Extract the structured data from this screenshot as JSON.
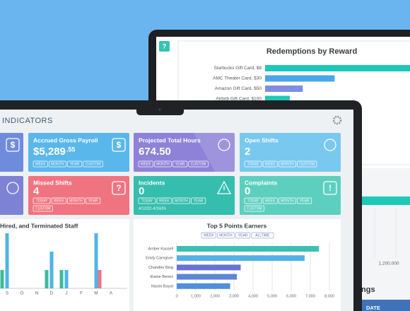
{
  "back_screen": {
    "help_icon": "?",
    "chart_data": {
      "type": "bar",
      "orientation": "horizontal",
      "title": "Redemptions by Reward",
      "categories": [
        "Starbucks Gift Card, $8",
        "AMC Theater Card, $30",
        "Amazon Gift Card, $50",
        "Airbnb Gift Card, $100"
      ],
      "values": [
        100,
        48,
        26,
        17
      ],
      "colors": [
        "#1ec8b8",
        "#4aa6e8",
        "#7f8ee0",
        "#1ec8b8"
      ]
    }
  },
  "front_screen": {
    "header": "INDICATORS",
    "cards": [
      {
        "color": "#6f8bdc",
        "icon": "$"
      },
      {
        "title": "Accrued Gross Payroll",
        "value": "$5,289",
        "value_suffix": ".55",
        "icon": "$",
        "color": "#5ab7ec",
        "filters": [
          "WEEK",
          "MONTH",
          "YEAR",
          "CUSTOM"
        ]
      },
      {
        "title": "Projected Total Hours",
        "value": "674.50",
        "color": "#8e82d8",
        "filters": [
          "WEEK",
          "MONTH",
          "YEAR",
          "CUSTOM"
        ]
      },
      {
        "title": "Open Shifts",
        "value": "2",
        "color": "#78c8f0",
        "filters": [
          "TODAY",
          "WEEK",
          "MONTH",
          "CUSTOM"
        ]
      },
      {
        "color": "#7d82d4"
      },
      {
        "title": "Missed Shifts",
        "value": "4",
        "icon": "?",
        "color": "#f07480",
        "filters": [
          "TODAY",
          "WEEK",
          "MONTH",
          "YEAR",
          "CUSTOM"
        ]
      },
      {
        "title": "Incidents",
        "value": "0",
        "color": "#35bead",
        "filters": [
          "TODAY",
          "WEEK",
          "MONTH",
          "YEAR"
        ],
        "date_range": "4/12/22-4/16/24"
      },
      {
        "title": "Complaints",
        "value": "0",
        "icon": "!",
        "color": "#5dcfbf",
        "filters": [
          "TODAY",
          "WEEK",
          "MONTH",
          "YEAR",
          "CUSTOM"
        ]
      }
    ],
    "staff_chart": {
      "chart_data": {
        "type": "bar",
        "title": "Hired, and Terminated Staff",
        "categories": [
          "S",
          "O",
          "N",
          "D",
          "J",
          "F",
          "M",
          "A"
        ],
        "series": [
          {
            "color": "#3fba9c",
            "values": [
              2,
              0,
              0,
              2,
              2,
              0,
              0,
              0
            ]
          },
          {
            "color": "#4fb4e8",
            "values": [
              6,
              0,
              0,
              4,
              2,
              0,
              6,
              0
            ]
          },
          {
            "color": "#f07480",
            "values": [
              0,
              0,
              0,
              0,
              0,
              0,
              2,
              0
            ]
          }
        ]
      }
    },
    "points_chart": {
      "chart_data": {
        "type": "hbar",
        "title": "Top 5 Points Earners",
        "filters": [
          "WEEK",
          "MONTH",
          "YEAR",
          "ALLTIME"
        ],
        "categories": [
          "Amber Kassell",
          "Emily Caregiver",
          "Chandler Bing",
          "Elaine Benes",
          "Nasim Bayat"
        ],
        "values": [
          7450,
          6700,
          3350,
          3150,
          2800
        ],
        "colors": [
          "#3cc0b4",
          "#55b0e6",
          "#6a74cf",
          "#5f86d6",
          "#4f8fdc"
        ],
        "xlim": [
          0,
          8000
        ],
        "xticks": [
          0,
          {
            "value": 1000,
            "label": "1,000"
          },
          {
            "value": 2000,
            "label": "2,000"
          },
          {
            "value": 3000,
            "label": "3,000"
          },
          {
            "value": 4000,
            "label": "4,000"
          },
          {
            "value": 5000,
            "label": "5,000"
          },
          {
            "value": 6000,
            "label": "6,000"
          },
          {
            "value": 7000,
            "label": "7,000"
          },
          {
            "value": 8000,
            "label": "8,000"
          }
        ],
        "grid": true
      }
    }
  },
  "side_panel": {
    "axis_label": "1,200,000",
    "title_fragment": "ngs",
    "column_header": "DATE"
  }
}
